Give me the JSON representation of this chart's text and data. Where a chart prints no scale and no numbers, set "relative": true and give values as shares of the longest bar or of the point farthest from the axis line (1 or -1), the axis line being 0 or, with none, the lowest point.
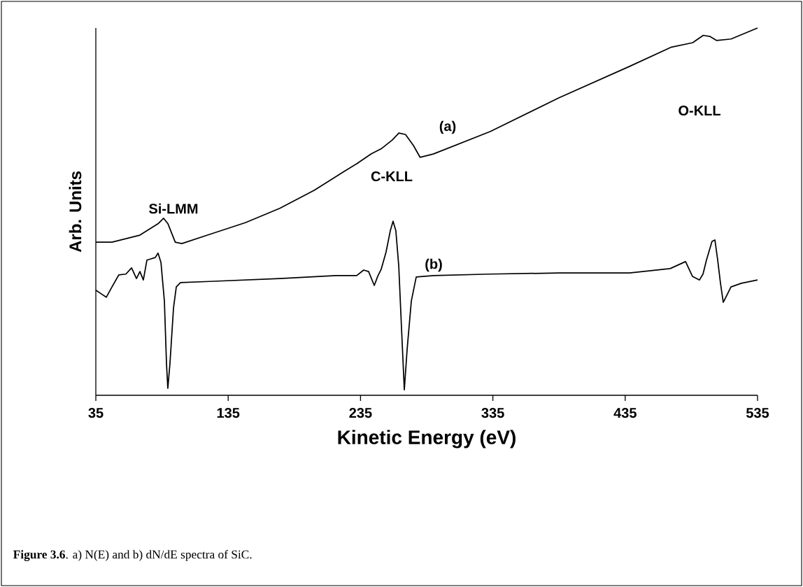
{
  "chart_data": {
    "type": "line",
    "relative": true,
    "xlabel": "Kinetic Energy (eV)",
    "ylabel": "Arb. Units",
    "xlim": [
      35,
      535
    ],
    "xticks": [
      35,
      135,
      235,
      335,
      435,
      535
    ],
    "marker": "none",
    "line_style": "solid",
    "series": [
      {
        "name": "(a)",
        "color": "#000000",
        "x": [
          35,
          47.2,
          68.3,
          82,
          86.2,
          89.5,
          95,
          100,
          121,
          148,
          174,
          200,
          222,
          232,
          243,
          251,
          259,
          264,
          269,
          275,
          280,
          290,
          333,
          385,
          438,
          470,
          486,
          494,
          499,
          504,
          515,
          535
        ],
        "values": [
          0.417,
          0.417,
          0.436,
          0.467,
          0.482,
          0.467,
          0.417,
          0.413,
          0.438,
          0.47,
          0.509,
          0.558,
          0.608,
          0.63,
          0.657,
          0.672,
          0.695,
          0.714,
          0.71,
          0.68,
          0.648,
          0.657,
          0.718,
          0.81,
          0.895,
          0.948,
          0.96,
          0.98,
          0.977,
          0.966,
          0.97,
          1.0
        ]
      },
      {
        "name": "(b)",
        "color": "#000000",
        "x": [
          35,
          39.2,
          42.9,
          47.2,
          52.4,
          57.7,
          62,
          65.7,
          68.3,
          70.9,
          73.6,
          76.2,
          79.9,
          82,
          84.2,
          86.8,
          88.4,
          89.4,
          91,
          93.7,
          95.8,
          99,
          121.2,
          174,
          216.3,
          232.1,
          237.4,
          241.1,
          245.4,
          248,
          250.6,
          254.3,
          257.5,
          259.6,
          261.7,
          263.9,
          266,
          268.1,
          270.2,
          273.4,
          277.1,
          290.3,
          332.6,
          385.4,
          438.3,
          469,
          480.6,
          485.8,
          491.1,
          493.8,
          496.4,
          500.6,
          502.8,
          504.9,
          507,
          509.1,
          512.3,
          514.9,
          522.8,
          535
        ],
        "values": [
          0.286,
          0.276,
          0.267,
          0.295,
          0.328,
          0.33,
          0.347,
          0.318,
          0.337,
          0.314,
          0.368,
          0.371,
          0.375,
          0.387,
          0.362,
          0.257,
          0.086,
          0.019,
          0.086,
          0.238,
          0.295,
          0.307,
          0.31,
          0.318,
          0.326,
          0.326,
          0.341,
          0.337,
          0.299,
          0.324,
          0.343,
          0.39,
          0.448,
          0.474,
          0.448,
          0.352,
          0.181,
          0.015,
          0.124,
          0.257,
          0.322,
          0.326,
          0.33,
          0.333,
          0.333,
          0.345,
          0.364,
          0.324,
          0.314,
          0.33,
          0.368,
          0.419,
          0.423,
          0.368,
          0.305,
          0.253,
          0.276,
          0.295,
          0.305,
          0.314
        ]
      }
    ],
    "annotations": [
      "Si-LMM",
      "C-KLL",
      "O-KLL",
      "**Figure 3.6**. a) N(E) and b) dN/dE spectra of SiC."
    ]
  }
}
